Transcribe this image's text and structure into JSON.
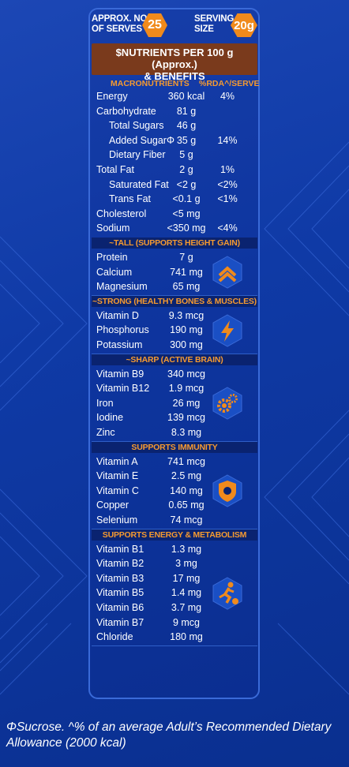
{
  "header": {
    "serves_label_line1": "APPROX. NO.",
    "serves_label_line2": "OF SERVES",
    "serves_value": "25",
    "serving_label_line1": "SERVING",
    "serving_label_line2": "SIZE",
    "serving_value": "20g"
  },
  "title": {
    "line1": "$NUTRIENTS PER 100 g (Approx.)",
    "line2": "& BENEFITS"
  },
  "macros": {
    "header_left": "MACRONUTRIENTS",
    "header_right": "%RDA^/SERVE",
    "rows": [
      {
        "name": "Energy",
        "value": "360 kcal",
        "rda": "4%"
      },
      {
        "name": "Carbohydrate",
        "value": "81 g",
        "rda": ""
      },
      {
        "name": "Total Sugars",
        "value": "46 g",
        "rda": ""
      },
      {
        "name": "Added SugarΦ",
        "value": "35 g",
        "rda": "14%"
      },
      {
        "name": "Dietary Fiber",
        "value": "5 g",
        "rda": ""
      },
      {
        "name": "Total Fat",
        "value": "2 g",
        "rda": "1%"
      },
      {
        "name": "Saturated Fat",
        "value": "<2 g",
        "rda": "<2%"
      },
      {
        "name": "Trans Fat",
        "value": "<0.1 g",
        "rda": "<1%"
      },
      {
        "name": "Cholesterol",
        "value": "<5 mg",
        "rda": ""
      },
      {
        "name": "Sodium",
        "value": "<350 mg",
        "rda": "<4%"
      }
    ]
  },
  "sections": [
    {
      "title": "~TALL (SUPPORTS HEIGHT GAIN)",
      "icon": "chevrons-up-icon",
      "rows": [
        {
          "name": "Protein",
          "value": "7 g"
        },
        {
          "name": "Calcium",
          "value": "741 mg"
        },
        {
          "name": "Magnesium",
          "value": "65 mg"
        }
      ]
    },
    {
      "title": "~STRONG (HEALTHY BONES & MUSCLES)",
      "icon": "lightning-icon",
      "rows": [
        {
          "name": "Vitamin D",
          "value": "9.3 mcg"
        },
        {
          "name": "Phosphorus",
          "value": "190 mg"
        },
        {
          "name": "Potassium",
          "value": "300 mg"
        }
      ]
    },
    {
      "title": "~SHARP (ACTIVE BRAIN)",
      "icon": "gears-icon",
      "rows": [
        {
          "name": "Vitamin B9",
          "value": "340 mcg"
        },
        {
          "name": "Vitamin B12",
          "value": "1.9 mcg"
        },
        {
          "name": "Iron",
          "value": "26 mg"
        },
        {
          "name": "Iodine",
          "value": "139 mcg"
        },
        {
          "name": "Zinc",
          "value": "8.3 mg"
        }
      ]
    },
    {
      "title": "SUPPORTS IMMUNITY",
      "icon": "shield-icon",
      "rows": [
        {
          "name": "Vitamin A",
          "value": "741 mcg"
        },
        {
          "name": "Vitamin E",
          "value": "2.5 mg"
        },
        {
          "name": "Vitamin C",
          "value": "140 mg"
        },
        {
          "name": "Copper",
          "value": "0.65 mg"
        },
        {
          "name": "Selenium",
          "value": "74 mcg"
        }
      ]
    },
    {
      "title": "SUPPORTS ENERGY & METABOLISM",
      "icon": "football-player-icon",
      "rows": [
        {
          "name": "Vitamin B1",
          "value": "1.3 mg"
        },
        {
          "name": "Vitamin B2",
          "value": "3 mg"
        },
        {
          "name": "Vitamin B3",
          "value": "17 mg"
        },
        {
          "name": "Vitamin B5",
          "value": "1.4 mg"
        },
        {
          "name": "Vitamin B6",
          "value": "3.7 mg"
        },
        {
          "name": "Vitamin B7",
          "value": "9 mcg"
        },
        {
          "name": "Chloride",
          "value": "180 mg"
        }
      ]
    }
  ],
  "footnote": "ΦSucrose. ^% of an average Adult’s Recommended Dietary Allowance (2000 kcal)",
  "colors": {
    "accent_orange": "#f08a1c",
    "title_brown": "#7a3a1c",
    "section_navy": "#0a2370",
    "background_blue": "#1242b0"
  }
}
